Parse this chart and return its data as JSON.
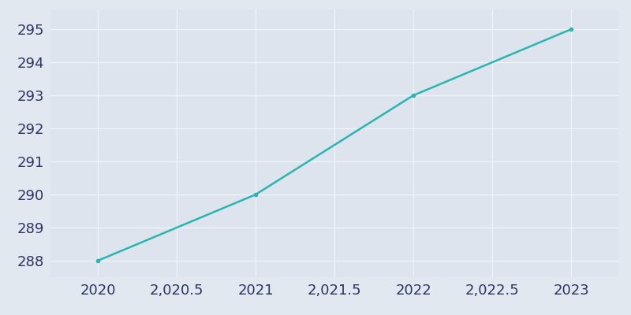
{
  "x": [
    2020,
    2021,
    2022,
    2023
  ],
  "y": [
    288,
    290,
    293,
    295
  ],
  "line_color": "#2ab5b0",
  "marker": "o",
  "marker_size": 4,
  "background_color": "#e2e8f0",
  "plot_bg_color": "#dde4ee",
  "grid_color": "#f0f3f8",
  "xlim": [
    2019.7,
    2023.3
  ],
  "ylim": [
    287.5,
    295.6
  ],
  "yticks": [
    288,
    289,
    290,
    291,
    292,
    293,
    294,
    295
  ],
  "tick_label_color": "#2d3561",
  "tick_fontsize": 13,
  "figsize": [
    8.0,
    4.0
  ],
  "dpi": 100
}
